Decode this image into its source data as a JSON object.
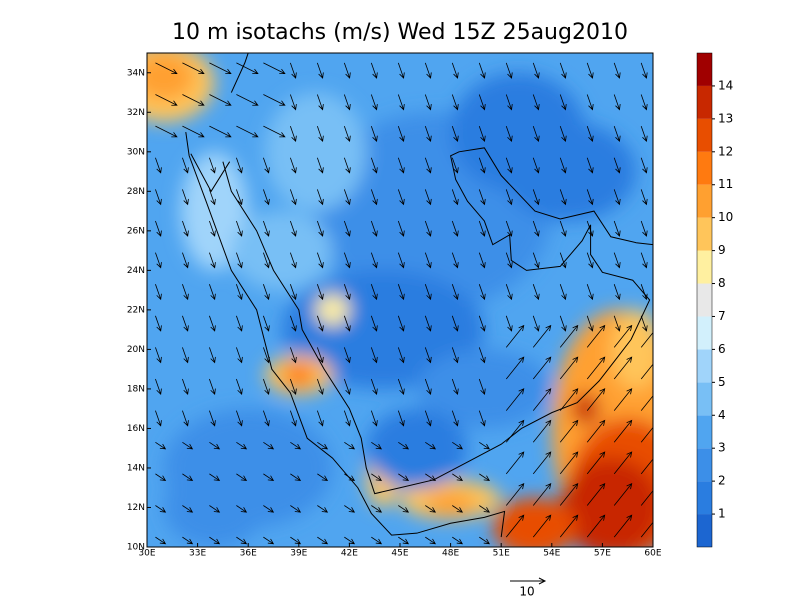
{
  "chart_data": {
    "type": "map",
    "title": "10 m isotachs (m/s) Wed 15Z 25aug2010",
    "xlim": [
      30,
      60
    ],
    "ylim": [
      10,
      35
    ],
    "xticks": [
      {
        "value": 30,
        "label": "30E"
      },
      {
        "value": 33,
        "label": "33E"
      },
      {
        "value": 36,
        "label": "36E"
      },
      {
        "value": 39,
        "label": "39E"
      },
      {
        "value": 42,
        "label": "42E"
      },
      {
        "value": 45,
        "label": "45E"
      },
      {
        "value": 48,
        "label": "48E"
      },
      {
        "value": 51,
        "label": "51E"
      },
      {
        "value": 54,
        "label": "54E"
      },
      {
        "value": 57,
        "label": "57E"
      },
      {
        "value": 60,
        "label": "60E"
      }
    ],
    "yticks": [
      {
        "value": 10,
        "label": "10N"
      },
      {
        "value": 12,
        "label": "12N"
      },
      {
        "value": 14,
        "label": "14N"
      },
      {
        "value": 16,
        "label": "16N"
      },
      {
        "value": 18,
        "label": "18N"
      },
      {
        "value": 20,
        "label": "20N"
      },
      {
        "value": 22,
        "label": "22N"
      },
      {
        "value": 24,
        "label": "24N"
      },
      {
        "value": 26,
        "label": "26N"
      },
      {
        "value": 28,
        "label": "28N"
      },
      {
        "value": 30,
        "label": "30N"
      },
      {
        "value": 32,
        "label": "32N"
      },
      {
        "value": 34,
        "label": "34N"
      }
    ],
    "colorbar": {
      "lim": [
        0,
        15
      ],
      "ticks": [
        1,
        2,
        3,
        4,
        5,
        6,
        7,
        8,
        9,
        10,
        11,
        12,
        13,
        14
      ],
      "colors": [
        "#1c66d1",
        "#2a7de0",
        "#3c8fe8",
        "#50a5f0",
        "#78bff5",
        "#a0d4fa",
        "#d2f0fc",
        "#e8e8e8",
        "#fff0a0",
        "#ffc55a",
        "#ffa030",
        "#ff7a10",
        "#e84e00",
        "#c82800",
        "#a00000"
      ]
    },
    "reference_vector": 10
  }
}
